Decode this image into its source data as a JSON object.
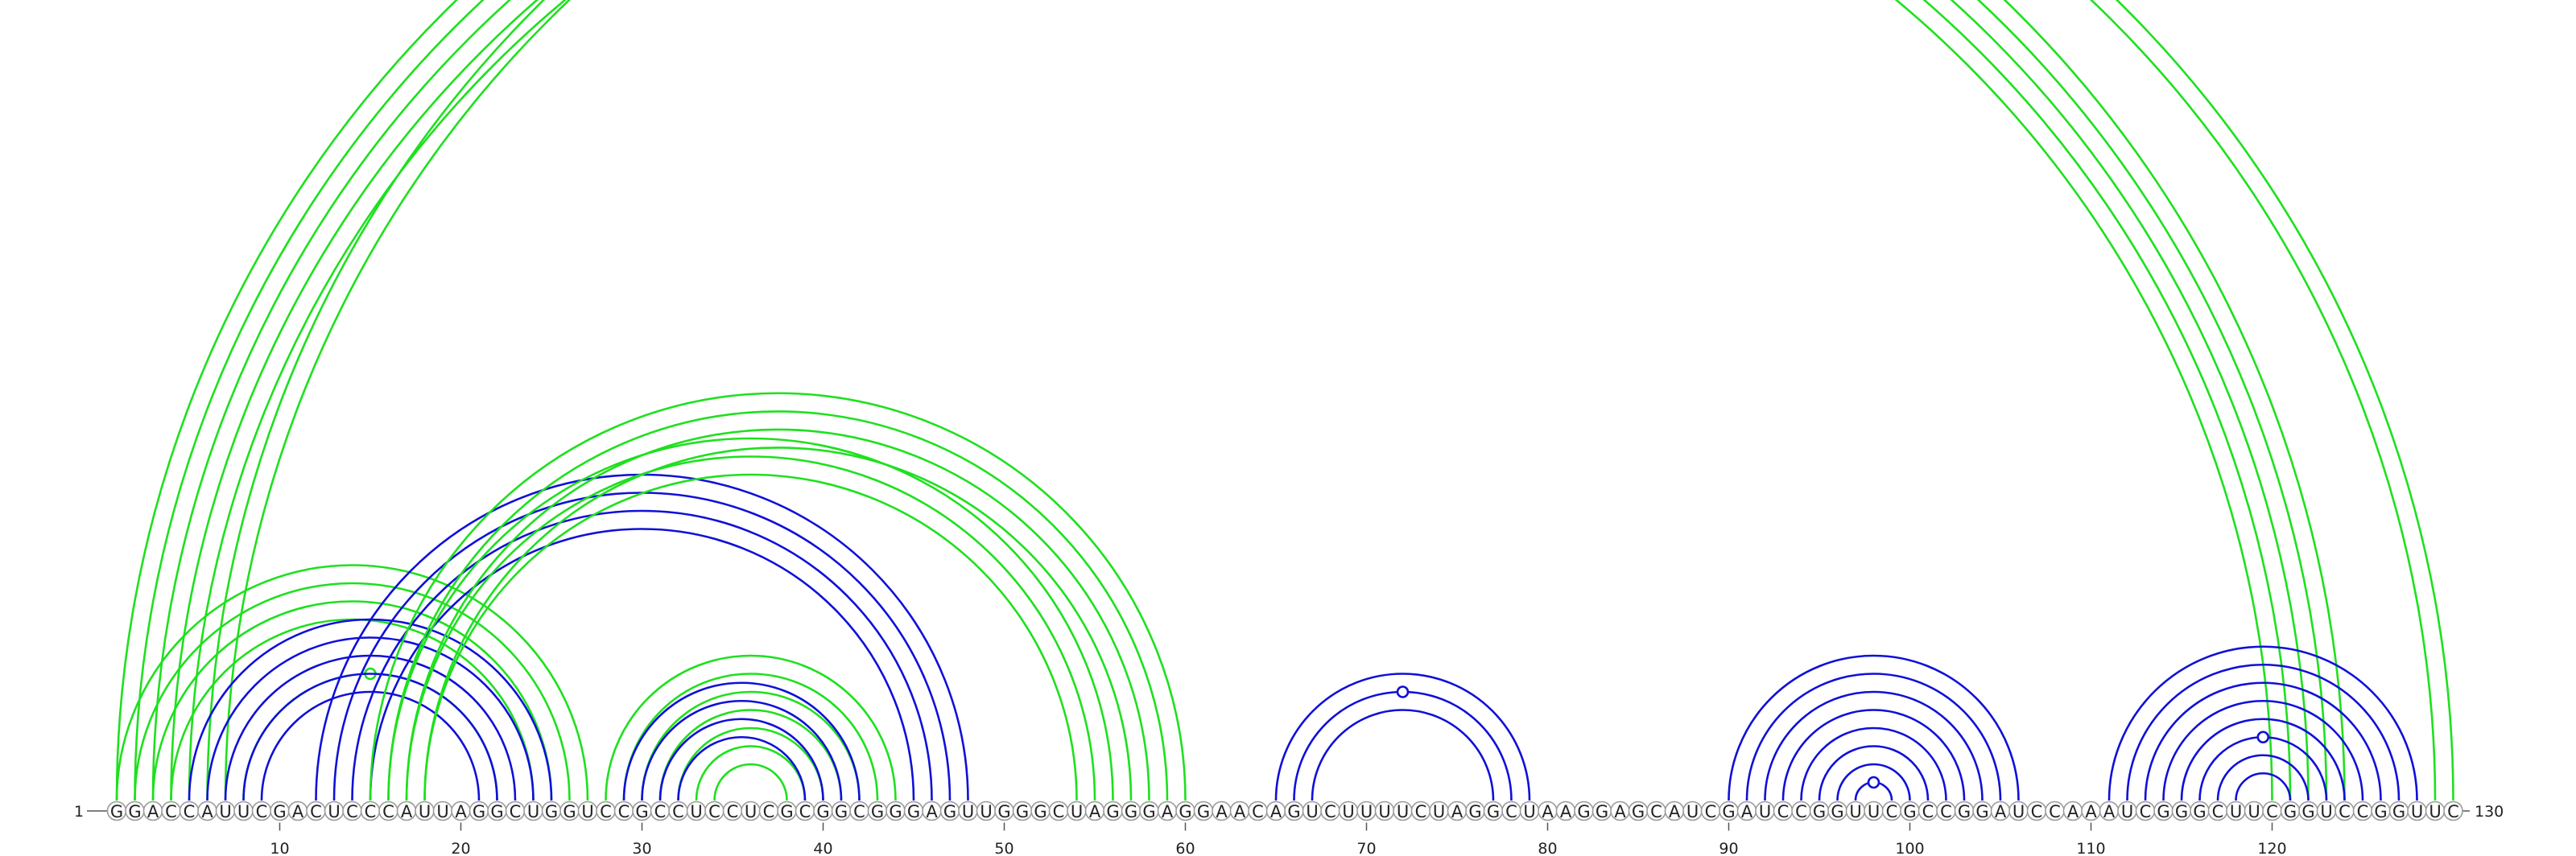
{
  "sequence": "GGACCAUUCGACUCCCAUUAGGCUGGUCCGCCUCCUCGCGGCGGGAGUUGGGCUAGGGAGGAACAGUCUUUUCUAGGCUAAGGAGCAUCGAUCCGGUUCGCCGGAUCCAAAUCGGGCUUCGGUCCGGUUC",
  "length": 130,
  "start_label": "1",
  "end_label": "130",
  "ticks": [
    "10",
    "20",
    "30",
    "40",
    "50",
    "60",
    "70",
    "80",
    "90",
    "100",
    "110",
    "120"
  ],
  "colors": {
    "green": "#1ee01e",
    "blue": "#1010d8"
  },
  "arc_groups": [
    {
      "color": "green",
      "pairs": [
        [
          1,
          124
        ],
        [
          2,
          123
        ],
        [
          3,
          122
        ],
        [
          4,
          121
        ],
        [
          5,
          120
        ]
      ]
    },
    {
      "color": "green",
      "pairs": [
        [
          6,
          130
        ],
        [
          7,
          129
        ]
      ],
      "marker_on_pair": 6
    },
    {
      "color": "green",
      "pairs": [
        [
          1,
          27
        ],
        [
          2,
          26
        ],
        [
          3,
          25
        ],
        [
          4,
          24
        ]
      ]
    },
    {
      "color": "green",
      "pairs": [
        [
          8,
          22
        ]
      ],
      "marker_on_pair": 0
    },
    {
      "color": "blue",
      "pairs": [
        [
          5,
          25
        ],
        [
          6,
          24
        ],
        [
          7,
          23
        ],
        [
          8,
          22
        ],
        [
          9,
          21
        ]
      ]
    },
    {
      "color": "blue",
      "pairs": [
        [
          12,
          48
        ],
        [
          13,
          47
        ],
        [
          14,
          46
        ],
        [
          15,
          45
        ]
      ]
    },
    {
      "color": "green",
      "pairs": [
        [
          15,
          60
        ],
        [
          16,
          59
        ],
        [
          17,
          58
        ],
        [
          18,
          57
        ]
      ]
    },
    {
      "color": "green",
      "pairs": [
        [
          16,
          56
        ],
        [
          17,
          55
        ],
        [
          18,
          54
        ]
      ]
    },
    {
      "color": "green",
      "pairs": [
        [
          28,
          44
        ],
        [
          29,
          43
        ],
        [
          30,
          42
        ],
        [
          31,
          41
        ],
        [
          32,
          40
        ],
        [
          33,
          39
        ],
        [
          34,
          38
        ]
      ]
    },
    {
      "color": "blue",
      "pairs": [
        [
          29,
          42
        ],
        [
          30,
          41
        ],
        [
          31,
          40
        ],
        [
          32,
          39
        ]
      ]
    },
    {
      "color": "blue",
      "pairs": [
        [
          65,
          79
        ],
        [
          66,
          78
        ],
        [
          67,
          77
        ]
      ],
      "marker_on_pair": 1
    },
    {
      "color": "blue",
      "pairs": [
        [
          90,
          106
        ],
        [
          91,
          105
        ],
        [
          92,
          104
        ],
        [
          93,
          103
        ],
        [
          94,
          102
        ],
        [
          95,
          101
        ],
        [
          96,
          100
        ],
        [
          97,
          99
        ]
      ],
      "marker_on_pair": 7
    },
    {
      "color": "blue",
      "pairs": [
        [
          111,
          128
        ],
        [
          112,
          127
        ],
        [
          113,
          126
        ],
        [
          114,
          125
        ],
        [
          115,
          124
        ],
        [
          116,
          123
        ],
        [
          117,
          122
        ],
        [
          118,
          121
        ]
      ],
      "marker_on_pair": 5
    }
  ]
}
